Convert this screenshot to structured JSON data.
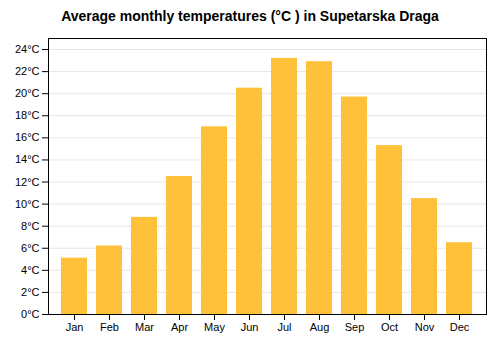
{
  "chart_data": {
    "type": "bar",
    "title": "Average monthly temperatures (°C ) in Supetarska Draga",
    "categories": [
      "Jan",
      "Feb",
      "Mar",
      "Apr",
      "May",
      "Jun",
      "Jul",
      "Aug",
      "Sep",
      "Oct",
      "Nov",
      "Dec"
    ],
    "values": [
      5.1,
      6.2,
      8.8,
      12.5,
      17.0,
      20.5,
      23.2,
      22.9,
      19.7,
      15.3,
      10.5,
      6.5
    ],
    "color": "#FFC13A",
    "ylim": [
      0,
      25
    ],
    "yticks": [
      {
        "value": 0,
        "label": "0°C"
      },
      {
        "value": 2,
        "label": "2°C"
      },
      {
        "value": 4,
        "label": "4°C"
      },
      {
        "value": 6,
        "label": "6°C"
      },
      {
        "value": 8,
        "label": "8°C"
      },
      {
        "value": 10,
        "label": "10°C"
      },
      {
        "value": 12,
        "label": "12°C"
      },
      {
        "value": 14,
        "label": "14°C"
      },
      {
        "value": 16,
        "label": "16°C"
      },
      {
        "value": 18,
        "label": "18°C"
      },
      {
        "value": 20,
        "label": "20°C"
      },
      {
        "value": 22,
        "label": "22°C"
      },
      {
        "value": 24,
        "label": "24°C"
      }
    ],
    "grid": true
  }
}
